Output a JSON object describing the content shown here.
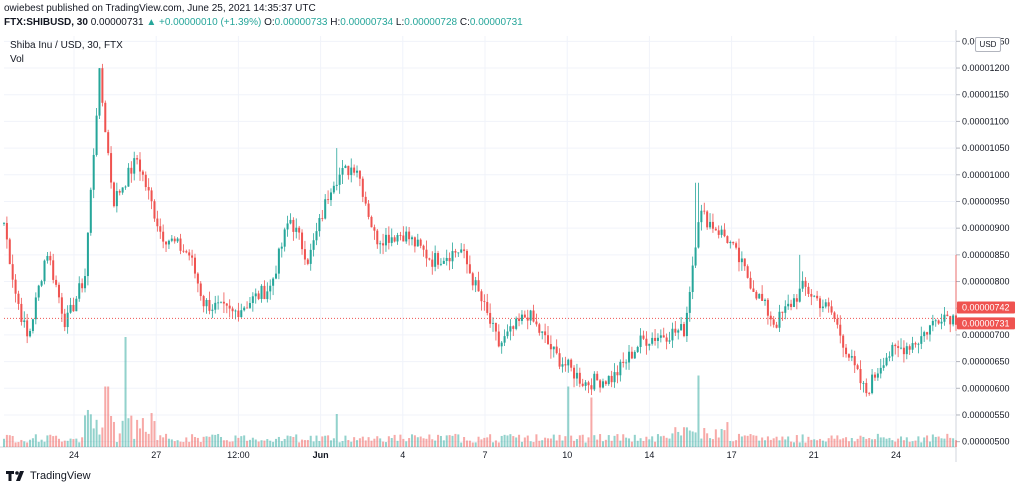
{
  "header": {
    "author": "owiebest",
    "published_text": "published on TradingView.com, June 25, 2021 14:35:37 UTC",
    "symbol": "FTX:SHIBUSD, 30",
    "last_price": "0.00000731",
    "arrow": "▲",
    "change": "+0.00000010 (+1.39%)",
    "o_label": "O:",
    "o_value": "0.00000733",
    "h_label": "H:",
    "h_value": "0.00000734",
    "l_label": "L:",
    "l_value": "0.00000728",
    "c_label": "C:",
    "c_value": "0.00000731"
  },
  "legend": {
    "series": "Shiba Inu / USD, 30, FTX",
    "volume": "Vol"
  },
  "currency_label": "USD",
  "footer": {
    "brand": "TradingView"
  },
  "colors": {
    "up": "#26a69a",
    "down": "#ef5350",
    "price_tag_bg": "#ef5350",
    "grid": "#f0f3fa",
    "axis_text": "#131722"
  },
  "chart_data": {
    "type": "candlestick",
    "x_ticks": [
      "24",
      "27",
      "12:00",
      "Jun",
      "4",
      "7",
      "10",
      "14",
      "17",
      "21",
      "24"
    ],
    "y_ticks": [
      "0.00000500",
      "0.00000550",
      "0.00000600",
      "0.00000650",
      "0.00000700",
      "0.00000750",
      "0.00000800",
      "0.00000850",
      "0.00000900",
      "0.00000950",
      "0.00001000",
      "0.00001050",
      "0.00001100",
      "0.00001150",
      "0.00001200",
      "0.00001250"
    ],
    "ylim": [
      4.9e-06,
      1.26e-05
    ],
    "price_tags": [
      {
        "label": "0.00000742",
        "value": 7.42e-06
      },
      {
        "label": "0.00000731",
        "value": 7.31e-06
      }
    ],
    "price_line": 7.31e-06,
    "key_points": [
      {
        "t": 0.0,
        "p": 9.1e-06
      },
      {
        "t": 0.012,
        "p": 7.8e-06
      },
      {
        "t": 0.025,
        "p": 6.9e-06
      },
      {
        "t": 0.045,
        "p": 8.6e-06
      },
      {
        "t": 0.065,
        "p": 7.2e-06
      },
      {
        "t": 0.085,
        "p": 8.1e-06
      },
      {
        "t": 0.1,
        "p": 1.19e-05
      },
      {
        "t": 0.115,
        "p": 9.5e-06
      },
      {
        "t": 0.14,
        "p": 1.03e-05
      },
      {
        "t": 0.165,
        "p": 8.9e-06
      },
      {
        "t": 0.195,
        "p": 8.5e-06
      },
      {
        "t": 0.21,
        "p": 7.6e-06
      },
      {
        "t": 0.24,
        "p": 7.4e-06
      },
      {
        "t": 0.28,
        "p": 7.9e-06
      },
      {
        "t": 0.3,
        "p": 9.2e-06
      },
      {
        "t": 0.32,
        "p": 8.4e-06
      },
      {
        "t": 0.345,
        "p": 9.9e-06
      },
      {
        "t": 0.37,
        "p": 1.02e-05
      },
      {
        "t": 0.39,
        "p": 8.8e-06
      },
      {
        "t": 0.42,
        "p": 8.9e-06
      },
      {
        "t": 0.45,
        "p": 8.4e-06
      },
      {
        "t": 0.48,
        "p": 8.6e-06
      },
      {
        "t": 0.5,
        "p": 7.7e-06
      },
      {
        "t": 0.52,
        "p": 6.8e-06
      },
      {
        "t": 0.55,
        "p": 7.4e-06
      },
      {
        "t": 0.58,
        "p": 6.6e-06
      },
      {
        "t": 0.61,
        "p": 6.1e-06
      },
      {
        "t": 0.64,
        "p": 6.2e-06
      },
      {
        "t": 0.67,
        "p": 6.9e-06
      },
      {
        "t": 0.715,
        "p": 7.1e-06
      },
      {
        "t": 0.73,
        "p": 9.3e-06
      },
      {
        "t": 0.76,
        "p": 8.8e-06
      },
      {
        "t": 0.79,
        "p": 7.8e-06
      },
      {
        "t": 0.81,
        "p": 7.2e-06
      },
      {
        "t": 0.84,
        "p": 7.9e-06
      },
      {
        "t": 0.87,
        "p": 7.4e-06
      },
      {
        "t": 0.89,
        "p": 6.5e-06
      },
      {
        "t": 0.905,
        "p": 5.9e-06
      },
      {
        "t": 0.925,
        "p": 6.6e-06
      },
      {
        "t": 0.96,
        "p": 6.9e-06
      },
      {
        "t": 0.985,
        "p": 7.4e-06
      },
      {
        "t": 1.0,
        "p": 7.31e-06
      }
    ],
    "spikes": [
      {
        "t": 0.1,
        "high": 1.2e-05
      },
      {
        "t": 0.35,
        "high": 1.05e-05
      },
      {
        "t": 0.728,
        "high": 9.85e-06
      },
      {
        "t": 0.835,
        "high": 8.5e-06
      },
      {
        "t": 1.0,
        "high": 8.5e-06
      }
    ],
    "volume_spikes": [
      {
        "t": 0.128,
        "v": 1.0
      },
      {
        "t": 0.108,
        "v": 0.55
      },
      {
        "t": 0.592,
        "v": 0.55
      },
      {
        "t": 0.73,
        "v": 0.65
      },
      {
        "t": 0.618,
        "v": 0.45
      },
      {
        "t": 0.35,
        "v": 0.3
      }
    ]
  }
}
